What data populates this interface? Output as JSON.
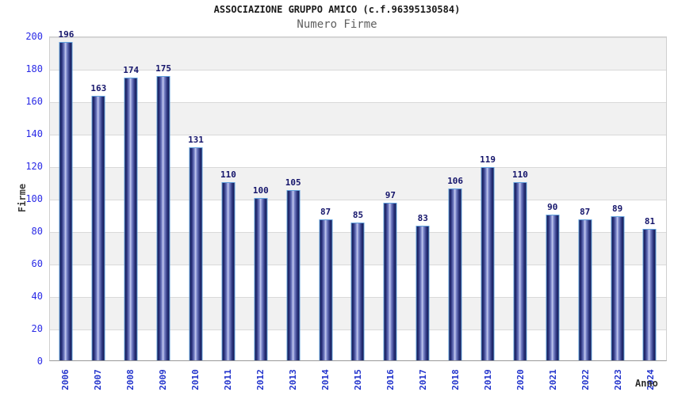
{
  "header": {
    "title": "ASSOCIAZIONE GRUPPO AMICO (c.f.96395130584)",
    "subtitle": "Numero Firme"
  },
  "chart_data": {
    "type": "bar",
    "title": "ASSOCIAZIONE GRUPPO AMICO (c.f.96395130584)",
    "subtitle": "Numero Firme",
    "categories": [
      "2006",
      "2007",
      "2008",
      "2009",
      "2010",
      "2011",
      "2012",
      "2013",
      "2014",
      "2015",
      "2016",
      "2017",
      "2018",
      "2019",
      "2020",
      "2021",
      "2022",
      "2023",
      "2024"
    ],
    "values": [
      196,
      163,
      174,
      175,
      131,
      110,
      100,
      105,
      87,
      85,
      97,
      83,
      106,
      119,
      110,
      90,
      87,
      89,
      81
    ],
    "xlabel": "Anno",
    "ylabel": "Firme",
    "ylim": [
      0,
      200
    ],
    "ytick_step": 20,
    "grid": "horizontal gridlines with alternating gray/white bands every 20 units",
    "legend": "none",
    "colors": {
      "tick-blue": "#2a2ae6",
      "year-blue": "#2233cc",
      "value-navy": "#15156b",
      "bar-dark": "#131851",
      "bar-light": "#c7cdf0",
      "bar-border": "#61a0dc",
      "band-gray": "#f1f1f1"
    }
  }
}
